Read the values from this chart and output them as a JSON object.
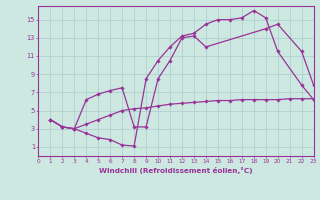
{
  "bg_color": "#cce8e0",
  "line_color": "#993399",
  "grid_color": "#aacccc",
  "xlabel": "Windchill (Refroidissement éolien,°C)",
  "xticks": [
    0,
    1,
    2,
    3,
    4,
    5,
    6,
    7,
    8,
    9,
    10,
    11,
    12,
    13,
    14,
    15,
    16,
    17,
    18,
    19,
    20,
    21,
    22,
    23
  ],
  "yticks": [
    1,
    3,
    5,
    7,
    9,
    11,
    13,
    15
  ],
  "xlim": [
    0,
    23
  ],
  "ylim": [
    0.0,
    16.5
  ],
  "curve1_x": [
    1,
    2,
    3,
    4,
    5,
    6,
    7,
    8,
    9,
    10,
    11,
    12,
    13,
    14,
    15,
    16,
    17,
    18,
    19,
    20,
    22,
    23
  ],
  "curve1_y": [
    4.0,
    3.2,
    3.0,
    2.5,
    2.0,
    1.8,
    1.2,
    1.1,
    8.5,
    10.5,
    12.0,
    13.2,
    13.5,
    14.5,
    15.0,
    15.0,
    15.2,
    16.0,
    15.2,
    11.5,
    7.8,
    6.2
  ],
  "curve2_x": [
    1,
    2,
    3,
    4,
    5,
    6,
    7,
    8,
    9,
    10,
    11,
    12,
    13,
    14,
    19,
    20,
    22,
    23
  ],
  "curve2_y": [
    4.0,
    3.2,
    3.0,
    6.2,
    6.8,
    7.2,
    7.5,
    3.2,
    3.2,
    8.5,
    10.5,
    13.0,
    13.2,
    12.0,
    14.0,
    14.5,
    11.5,
    7.8
  ],
  "curve3_x": [
    1,
    2,
    3,
    4,
    5,
    6,
    7,
    8,
    9,
    10,
    11,
    12,
    13,
    14,
    15,
    16,
    17,
    18,
    19,
    20,
    21,
    22,
    23
  ],
  "curve3_y": [
    4.0,
    3.2,
    3.0,
    3.5,
    4.0,
    4.5,
    5.0,
    5.2,
    5.3,
    5.5,
    5.7,
    5.8,
    5.9,
    6.0,
    6.1,
    6.1,
    6.2,
    6.2,
    6.2,
    6.2,
    6.3,
    6.3,
    6.3
  ]
}
